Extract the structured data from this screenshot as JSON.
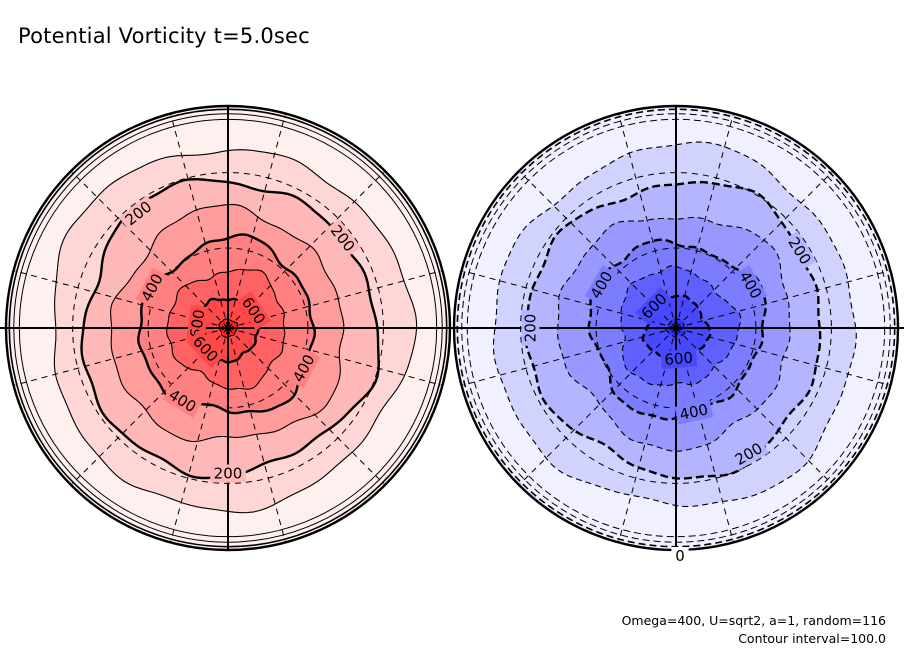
{
  "title": "Potential Vorticity t=5.0sec",
  "footnote": {
    "params": "Omega=400, U=sqrt2, a=1, random=116",
    "contour_interval": "Contour interval=100.0"
  },
  "chart_data": [
    {
      "type": "heatmap",
      "projection": "polar-stereographic",
      "hemisphere": "north",
      "title": "Potential Vorticity t=5.0sec",
      "sign": "positive",
      "contour_interval": 100.0,
      "contour_levels": [
        0,
        100,
        200,
        300,
        400,
        500,
        600,
        700
      ],
      "line_style": "solid",
      "bold_levels": [
        200,
        400,
        600
      ],
      "fill_colors": [
        "#fff0f0",
        "#ffd6d6",
        "#ffb8b8",
        "#ff9c9c",
        "#ff8080",
        "#ff6262",
        "#ff4848",
        "#ff2020"
      ],
      "contour_labels": [
        {
          "text": "200",
          "angle_deg": 128
        },
        {
          "text": "200",
          "angle_deg": 38
        },
        {
          "text": "200",
          "angle_deg": 270
        },
        {
          "text": "400",
          "angle_deg": 152
        },
        {
          "text": "400",
          "angle_deg": 332
        },
        {
          "text": "400",
          "angle_deg": 238
        },
        {
          "text": "600",
          "angle_deg": 172
        },
        {
          "text": "600",
          "angle_deg": 34
        },
        {
          "text": "600",
          "angle_deg": 215
        }
      ],
      "meridians": 12,
      "graticule": "dashed",
      "axes": "cross"
    },
    {
      "type": "heatmap",
      "projection": "polar-stereographic",
      "hemisphere": "south",
      "title": "Potential Vorticity t=5.0sec",
      "sign": "negative",
      "contour_interval": 100.0,
      "contour_levels": [
        0,
        100,
        200,
        300,
        400,
        500,
        600,
        700
      ],
      "line_style": "dashed",
      "bold_levels": [
        200,
        400,
        600
      ],
      "fill_colors": [
        "#f0f0ff",
        "#d2d2ff",
        "#b4b4ff",
        "#9898ff",
        "#7c7cff",
        "#6060ff",
        "#4848ff",
        "#3030ff"
      ],
      "contour_labels": [
        {
          "text": "200",
          "angle_deg": 180
        },
        {
          "text": "200",
          "angle_deg": 32
        },
        {
          "text": "200",
          "angle_deg": 300
        },
        {
          "text": "400",
          "angle_deg": 150
        },
        {
          "text": "400",
          "angle_deg": 30
        },
        {
          "text": "400",
          "angle_deg": 282
        },
        {
          "text": "600",
          "angle_deg": 135
        },
        {
          "text": "600",
          "angle_deg": 275
        },
        {
          "text": "0",
          "angle_deg": 270
        }
      ],
      "meridians": 12,
      "graticule": "dashed",
      "axes": "cross"
    }
  ]
}
